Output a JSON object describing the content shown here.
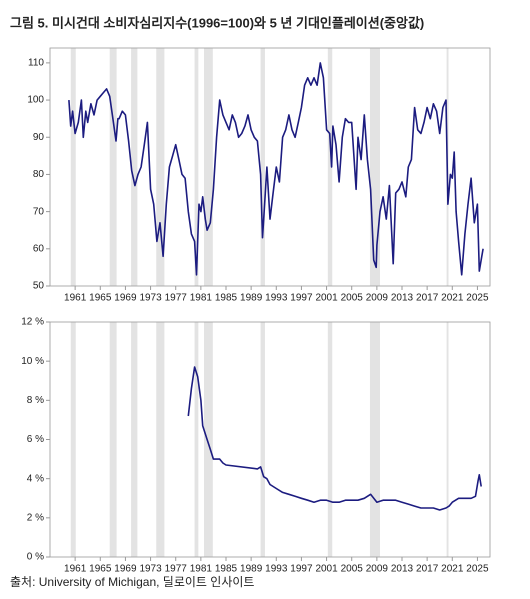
{
  "title": "그림 5. 미시건대 소비자심리지수(1996=100)와 5 년 기대인플레이션(중앙값)",
  "source": "출처: University of Michigan, 딜로이트 인사이트",
  "chart_data": [
    {
      "type": "line",
      "color": "#1c1c80",
      "band_color": "#e3e3e3",
      "xlim": [
        1957,
        2027
      ],
      "xticks": [
        1961,
        1965,
        1969,
        1973,
        1977,
        1981,
        1985,
        1989,
        1993,
        1997,
        2001,
        2005,
        2009,
        2013,
        2017,
        2021,
        2025
      ],
      "ylim": [
        50,
        114
      ],
      "yticks": [
        50,
        60,
        70,
        80,
        90,
        100,
        110
      ],
      "bands": [
        [
          1960.3,
          1961.1
        ],
        [
          1966.5,
          1967.6
        ],
        [
          1969.9,
          1970.9
        ],
        [
          1973.9,
          1975.2
        ],
        [
          1980.0,
          1980.6
        ],
        [
          1981.5,
          1982.9
        ],
        [
          1990.5,
          1991.2
        ],
        [
          2001.2,
          2001.9
        ],
        [
          2007.9,
          2009.5
        ],
        [
          2020.1,
          2020.4
        ]
      ],
      "x": [
        1960,
        1960.3,
        1960.6,
        1961,
        1961.5,
        1962,
        1962.3,
        1962.7,
        1963,
        1963.5,
        1964,
        1964.5,
        1965,
        1965.5,
        1966,
        1966.5,
        1967,
        1967.5,
        1967.8,
        1968,
        1968.5,
        1969,
        1969.5,
        1970,
        1970.5,
        1971,
        1971.5,
        1972,
        1972.5,
        1973,
        1973.5,
        1974,
        1974.5,
        1975,
        1975.5,
        1976,
        1976.5,
        1977,
        1977.5,
        1978,
        1978.5,
        1979,
        1979.5,
        1980,
        1980.3,
        1980.7,
        1981,
        1981.3,
        1981.7,
        1982,
        1982.5,
        1983,
        1983.5,
        1984,
        1984.5,
        1985,
        1985.5,
        1986,
        1986.5,
        1987,
        1987.5,
        1988,
        1988.5,
        1989,
        1989.5,
        1990,
        1990.5,
        1990.8,
        1991,
        1991.5,
        1992,
        1992.5,
        1993,
        1993.5,
        1994,
        1994.5,
        1995,
        1995.5,
        1996,
        1996.5,
        1997,
        1997.5,
        1998,
        1998.5,
        1999,
        1999.5,
        2000,
        2000.5,
        2001,
        2001.5,
        2001.8,
        2002,
        2002.5,
        2003,
        2003.5,
        2004,
        2004.5,
        2005,
        2005.7,
        2006,
        2006.5,
        2007,
        2007.5,
        2008,
        2008.5,
        2008.9,
        2009,
        2009.5,
        2010,
        2010.5,
        2011,
        2011.6,
        2012,
        2012.5,
        2013,
        2013.6,
        2014,
        2014.5,
        2015,
        2015.5,
        2016,
        2016.5,
        2017,
        2017.5,
        2018,
        2018.5,
        2019,
        2019.5,
        2020,
        2020.3,
        2020.7,
        2021,
        2021.3,
        2021.6,
        2022,
        2022.5,
        2023,
        2023.5,
        2024,
        2024.5,
        2025,
        2025.3,
        2025.7,
        2025.9
      ],
      "values": [
        100,
        93,
        97,
        91,
        94,
        100,
        90,
        97,
        94,
        99,
        96,
        100,
        101,
        102,
        103,
        101,
        95,
        89,
        95,
        95,
        97,
        96,
        89,
        81,
        77,
        80,
        82,
        88,
        94,
        76,
        72,
        62,
        67,
        58,
        72,
        82,
        85,
        88,
        84,
        80,
        79,
        70,
        64,
        62,
        53,
        72,
        70,
        74,
        68,
        65,
        67,
        76,
        90,
        100,
        96,
        94,
        92,
        96,
        94,
        90,
        91,
        93,
        96,
        92,
        90,
        89,
        80,
        63,
        68,
        82,
        68,
        75,
        82,
        78,
        90,
        92,
        96,
        92,
        90,
        94,
        98,
        104,
        106,
        104,
        106,
        104,
        110,
        106,
        92,
        91,
        82,
        93,
        88,
        78,
        90,
        95,
        94,
        94,
        76,
        90,
        84,
        96,
        84,
        76,
        57,
        55,
        61,
        70,
        74,
        68,
        77,
        56,
        75,
        76,
        78,
        74,
        82,
        84,
        98,
        92,
        91,
        94,
        98,
        95,
        99,
        97,
        91,
        98,
        100,
        72,
        80,
        79,
        86,
        70,
        62,
        53,
        64,
        72,
        79,
        67,
        72,
        54,
        58,
        60
      ]
    },
    {
      "type": "line",
      "color": "#1c1c80",
      "band_color": "#e3e3e3",
      "xlim": [
        1957,
        2027
      ],
      "xticks": [
        1961,
        1965,
        1969,
        1973,
        1977,
        1981,
        1985,
        1989,
        1993,
        1997,
        2001,
        2005,
        2009,
        2013,
        2017,
        2021,
        2025
      ],
      "ylim": [
        0,
        12
      ],
      "yticks": [
        {
          "value": 0,
          "label": "0 %"
        },
        {
          "value": 2,
          "label": "2 %"
        },
        {
          "value": 4,
          "label": "4 %"
        },
        {
          "value": 6,
          "label": "6 %"
        },
        {
          "value": 8,
          "label": "8 %"
        },
        {
          "value": 10,
          "label": "10 %"
        },
        {
          "value": 12,
          "label": "12 %"
        }
      ],
      "bands": [
        [
          1960.3,
          1961.1
        ],
        [
          1966.5,
          1967.6
        ],
        [
          1969.9,
          1970.9
        ],
        [
          1973.9,
          1975.2
        ],
        [
          1980.0,
          1980.6
        ],
        [
          1981.5,
          1982.9
        ],
        [
          1990.5,
          1991.2
        ],
        [
          2001.2,
          2001.9
        ],
        [
          2007.9,
          2009.5
        ],
        [
          2020.1,
          2020.4
        ]
      ],
      "x": [
        1979,
        1979.5,
        1980,
        1980.5,
        1981,
        1981.3,
        1982,
        1982.5,
        1983,
        1984,
        1984.5,
        1985,
        1990,
        1990.5,
        1991,
        1991.5,
        1992,
        1993,
        1994,
        1995,
        1996,
        1997,
        1998,
        1999,
        2000,
        2001,
        2002,
        2003,
        2004,
        2005,
        2006,
        2007,
        2008,
        2009,
        2010,
        2011,
        2012,
        2013,
        2014,
        2015,
        2016,
        2017,
        2018,
        2019,
        2020,
        2020.5,
        2021,
        2022,
        2023,
        2024,
        2024.7,
        2025.1,
        2025.3,
        2025.6
      ],
      "values": [
        7.2,
        8.6,
        9.7,
        9.2,
        8.0,
        6.7,
        6.0,
        5.5,
        5.0,
        5.0,
        4.8,
        4.7,
        4.5,
        4.6,
        4.1,
        4.0,
        3.7,
        3.5,
        3.3,
        3.2,
        3.1,
        3.0,
        2.9,
        2.8,
        2.9,
        2.9,
        2.8,
        2.8,
        2.9,
        2.9,
        2.9,
        3.0,
        3.2,
        2.8,
        2.9,
        2.9,
        2.9,
        2.8,
        2.7,
        2.6,
        2.5,
        2.5,
        2.5,
        2.4,
        2.5,
        2.6,
        2.8,
        3.0,
        3.0,
        3.0,
        3.1,
        3.9,
        4.2,
        3.6
      ]
    }
  ]
}
